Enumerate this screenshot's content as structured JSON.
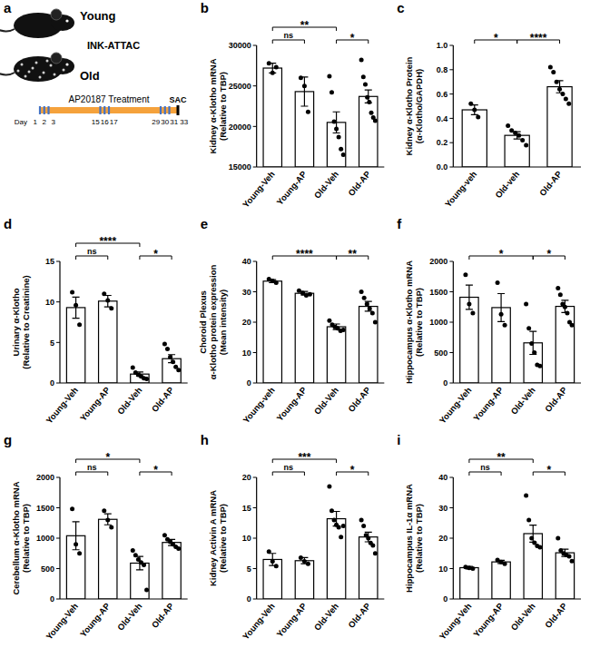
{
  "schematic": {
    "panel": "a",
    "young": "Young",
    "old": "Old",
    "model": "INK-ATTAC",
    "drug": "AP20187",
    "treatment": "Treatment",
    "endpoint": "SAC",
    "day_prefix": "Day",
    "treatment_days": [
      1,
      2,
      3,
      15,
      16,
      17,
      29,
      30,
      31
    ],
    "sac_day": 33
  },
  "chart_data": [
    {
      "type": "bar",
      "panel": "b",
      "ylabel": [
        "Kidney α-Klotho mRNA",
        "(Relative to TBP)"
      ],
      "categories": [
        "Young-Veh",
        "Young-AP",
        "Old-Veh",
        "Old-AP"
      ],
      "values": [
        27200,
        24300,
        20500,
        23700
      ],
      "errors": [
        600,
        1800,
        1300,
        800
      ],
      "points": [
        [
          27800,
          26600,
          27300
        ],
        [
          26000,
          25000,
          21800
        ],
        [
          26200,
          24200,
          20600,
          19700,
          18700,
          17200,
          16500
        ],
        [
          28200,
          26100,
          25200,
          23600,
          23000,
          21700,
          21100,
          20700
        ]
      ],
      "ylim": [
        15000,
        30000
      ],
      "yticks": [
        15000,
        20000,
        25000,
        30000
      ],
      "annotations": [
        {
          "between": [
            "Young-Veh",
            "Young-AP"
          ],
          "text": "ns"
        },
        {
          "between": [
            "Young-Veh",
            "Old-Veh"
          ],
          "text": "**"
        },
        {
          "between": [
            "Old-Veh",
            "Old-AP"
          ],
          "text": "*"
        }
      ],
      "color": "#ffffff",
      "marker": "circle",
      "grid": false
    },
    {
      "type": "bar",
      "panel": "c",
      "ylabel": [
        "Kidney α-Klotho Protein",
        "(α-Klotho/GAPDH)"
      ],
      "categories": [
        "Young-veh",
        "Old-veh",
        "Old-AP"
      ],
      "values": [
        0.47,
        0.26,
        0.66
      ],
      "errors": [
        0.04,
        0.03,
        0.05
      ],
      "points": [
        [
          0.52,
          0.47,
          0.41
        ],
        [
          0.34,
          0.3,
          0.28,
          0.26,
          0.22,
          0.18
        ],
        [
          0.82,
          0.78,
          0.7,
          0.64,
          0.6,
          0.56,
          0.52
        ]
      ],
      "ylim": [
        0,
        1
      ],
      "yticks": [
        {
          "value": 0,
          "label": "0.0"
        },
        0.2,
        0.4,
        0.6,
        0.8,
        {
          "value": 1,
          "label": "1.0"
        }
      ],
      "annotations": [
        {
          "between": [
            "Young-veh",
            "Old-veh"
          ],
          "text": "*"
        },
        {
          "between": [
            "Old-veh",
            "Old-AP"
          ],
          "text": "****"
        }
      ],
      "color": "#ffffff",
      "marker": "circle",
      "grid": false
    },
    {
      "type": "bar",
      "panel": "d",
      "ylabel": [
        "Urinary α-Klotho",
        "(Relative to Creatinine)"
      ],
      "categories": [
        "Young-Veh",
        "Young-AP",
        "Old-Veh",
        "Old-AP"
      ],
      "values": [
        9.3,
        10.1,
        1.1,
        3.0
      ],
      "errors": [
        1.3,
        0.7,
        0.25,
        0.5
      ],
      "points": [
        [
          11.2,
          9.6,
          7.2
        ],
        [
          11.0,
          10.2,
          9.2
        ],
        [
          1.9,
          1.3,
          1.0,
          0.8,
          0.6,
          0.5
        ],
        [
          4.8,
          4.2,
          3.2,
          2.6,
          2.0,
          1.6
        ]
      ],
      "ylim": [
        0,
        15
      ],
      "yticks": [
        0,
        5,
        10,
        15
      ],
      "annotations": [
        {
          "between": [
            "Young-Veh",
            "Young-AP"
          ],
          "text": "ns"
        },
        {
          "between": [
            "Young-Veh",
            "Old-Veh"
          ],
          "text": "****"
        },
        {
          "between": [
            "Old-Veh",
            "Old-AP"
          ],
          "text": "*"
        }
      ],
      "color": "#ffffff",
      "marker": "circle",
      "grid": false
    },
    {
      "type": "bar",
      "panel": "e",
      "ylabel": [
        "Choroid Plexus",
        "α-Klotho protein expression",
        "(Mean intensity)"
      ],
      "categories": [
        "Young-veh",
        "Young-AP",
        "Old-Veh",
        "Old-AP"
      ],
      "values": [
        33.5,
        29.5,
        18.5,
        25.2
      ],
      "errors": [
        0.5,
        0.6,
        0.9,
        1.6
      ],
      "points": [
        [
          34.2,
          33.6,
          33.0
        ],
        [
          30.4,
          29.6,
          28.8,
          29.2
        ],
        [
          20.5,
          19.2,
          18.4,
          18.0,
          17.2,
          17.5
        ],
        [
          30.0,
          28.0,
          26.0,
          24.5,
          23.0,
          20.0
        ]
      ],
      "ylim": [
        0,
        40
      ],
      "yticks": [
        0,
        10,
        20,
        30,
        40
      ],
      "annotations": [
        {
          "between": [
            "Young-veh",
            "Old-Veh"
          ],
          "text": "****"
        },
        {
          "between": [
            "Old-Veh",
            "Old-AP"
          ],
          "text": "**"
        }
      ],
      "color": "#ffffff",
      "marker": "circle",
      "grid": false
    },
    {
      "type": "bar",
      "panel": "f",
      "ylabel": [
        "Hippocampus α-Klotho mRNA",
        "(Relative to TBP)"
      ],
      "categories": [
        "Young-Veh",
        "Young-AP",
        "Old-Veh",
        "Old-AP"
      ],
      "values": [
        1410,
        1240,
        660,
        1260
      ],
      "errors": [
        200,
        230,
        190,
        100
      ],
      "points": [
        [
          1780,
          1300,
          1150
        ],
        [
          1650,
          1130,
          950
        ],
        [
          1300,
          900,
          650,
          500,
          300,
          280
        ],
        [
          1560,
          1450,
          1300,
          1250,
          1150,
          1000,
          950
        ]
      ],
      "ylim": [
        0,
        2000
      ],
      "yticks": [
        0,
        500,
        1000,
        1500,
        2000
      ],
      "annotations": [
        {
          "between": [
            "Young-Veh",
            "Old-Veh"
          ],
          "text": "*"
        },
        {
          "between": [
            "Old-Veh",
            "Old-AP"
          ],
          "text": "*"
        }
      ],
      "color": "#ffffff",
      "marker": "circle",
      "grid": false
    },
    {
      "type": "bar",
      "panel": "g",
      "ylabel": [
        "Cerebellum α-Klotho mRNA",
        "(Relative to TBP)"
      ],
      "categories": [
        "Young-Veh",
        "Young-AP",
        "Old-Veh",
        "Old-AP"
      ],
      "values": [
        1040,
        1310,
        590,
        930
      ],
      "errors": [
        230,
        90,
        110,
        50
      ],
      "points": [
        [
          1480,
          900,
          750
        ],
        [
          1450,
          1300,
          1180
        ],
        [
          800,
          720,
          650,
          600,
          560,
          150
        ],
        [
          1050,
          980,
          940,
          900,
          860,
          830
        ]
      ],
      "ylim": [
        0,
        2000
      ],
      "yticks": [
        0,
        500,
        1000,
        1500,
        2000
      ],
      "annotations": [
        {
          "between": [
            "Young-Veh",
            "Young-AP"
          ],
          "text": "ns"
        },
        {
          "between": [
            "Young-Veh",
            "Old-Veh"
          ],
          "text": "*"
        },
        {
          "between": [
            "Old-Veh",
            "Old-AP"
          ],
          "text": "*"
        }
      ],
      "color": "#ffffff",
      "marker": "circle",
      "grid": false
    },
    {
      "type": "bar",
      "panel": "h",
      "ylabel": [
        "Kidney Activin A mRNA",
        "(Relative to TBP)"
      ],
      "categories": [
        "Young-Veh",
        "Young-AP",
        "Old-Veh",
        "Old-AP"
      ],
      "values": [
        6.5,
        6.3,
        13.2,
        10.2
      ],
      "errors": [
        1.0,
        0.5,
        1.2,
        0.8
      ],
      "points": [
        [
          7.8,
          6.2,
          5.4
        ],
        [
          6.8,
          6.2,
          5.8
        ],
        [
          18.5,
          14.5,
          13.0,
          12.2,
          11.8,
          10.2,
          12.0
        ],
        [
          13.0,
          12.0,
          10.5,
          10.0,
          9.2,
          8.8,
          7.5
        ]
      ],
      "ylim": [
        0,
        20
      ],
      "yticks": [
        0,
        5,
        10,
        15,
        20
      ],
      "annotations": [
        {
          "between": [
            "Young-Veh",
            "Young-AP"
          ],
          "text": "ns"
        },
        {
          "between": [
            "Young-Veh",
            "Old-Veh"
          ],
          "text": "***"
        },
        {
          "between": [
            "Old-Veh",
            "Old-AP"
          ],
          "text": "*"
        }
      ],
      "color": "#ffffff",
      "marker": "circle",
      "grid": false
    },
    {
      "type": "bar",
      "panel": "i",
      "ylabel": [
        "Hippocampus IL-1α mRNA",
        "(Relative to TBP)"
      ],
      "categories": [
        "Young-Veh",
        "Young-AP",
        "Old-Veh",
        "Old-AP"
      ],
      "values": [
        10.3,
        12.2,
        21.5,
        15.2
      ],
      "errors": [
        0.4,
        0.5,
        2.8,
        1.2
      ],
      "points": [
        [
          10.5,
          10.2,
          10.0
        ],
        [
          12.8,
          12.2,
          11.6
        ],
        [
          34.0,
          26.0,
          20.0,
          18.5,
          17.5,
          17.0
        ],
        [
          20.0,
          16.0,
          15.0,
          14.5,
          14.0,
          12.5
        ]
      ],
      "ylim": [
        0,
        40
      ],
      "yticks": [
        0,
        10,
        20,
        30,
        40
      ],
      "annotations": [
        {
          "between": [
            "Young-Veh",
            "Young-AP"
          ],
          "text": "ns"
        },
        {
          "between": [
            "Young-Veh",
            "Old-Veh"
          ],
          "text": "**"
        },
        {
          "between": [
            "Old-Veh",
            "Old-AP"
          ],
          "text": "*"
        }
      ],
      "color": "#ffffff",
      "marker": "circle",
      "grid": false
    }
  ]
}
